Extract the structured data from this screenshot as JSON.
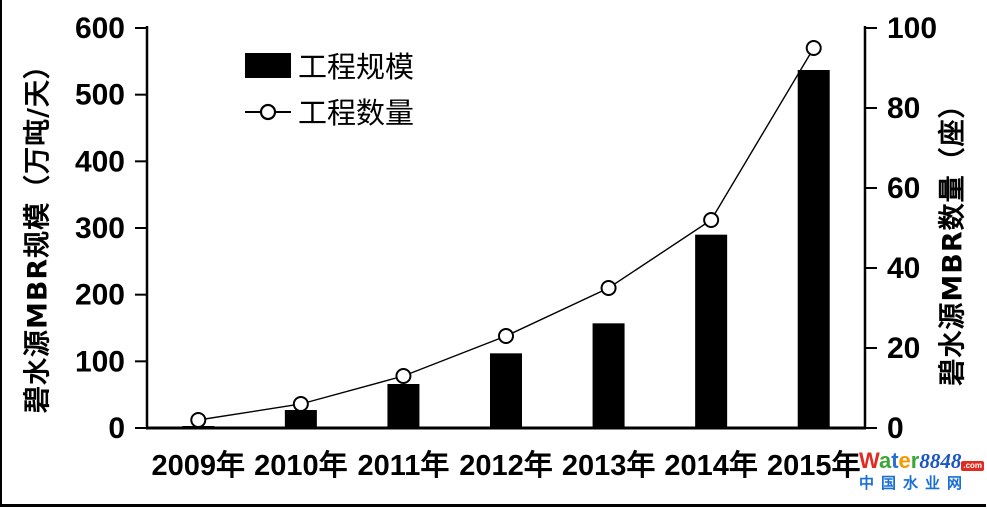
{
  "chart_data": {
    "type": "bar+line combo",
    "categories": [
      "2009年",
      "2010年",
      "2011年",
      "2012年",
      "2013年",
      "2014年",
      "2015年"
    ],
    "series": [
      {
        "name": "工程规模",
        "type": "bar",
        "axis": "left",
        "color": "#000000",
        "values": [
          3,
          27,
          66,
          112,
          157,
          290,
          537
        ]
      },
      {
        "name": "工程数量",
        "type": "line",
        "axis": "right",
        "color": "#000000",
        "marker": "open-circle",
        "marker_fill": "#ffffff",
        "values": [
          2,
          6,
          13,
          23,
          35,
          52,
          95
        ]
      }
    ],
    "left_axis": {
      "label": "碧水源MBR规模（万吨/天）",
      "min": 0,
      "max": 600,
      "step": 100,
      "ticks": [
        0,
        100,
        200,
        300,
        400,
        500,
        600
      ]
    },
    "right_axis": {
      "label": "碧水源MBR数量（座）",
      "min": 0,
      "max": 100,
      "step": 20,
      "ticks": [
        0,
        20,
        40,
        60,
        80,
        100
      ]
    },
    "legend": {
      "position": "inside-top-left",
      "items": [
        "工程规模",
        "工程数量"
      ]
    },
    "grid": false,
    "title": "",
    "axis_color": "#000000",
    "background": "#ffffff"
  },
  "watermark": {
    "brand_letters": [
      {
        "ch": "W",
        "color": "#e02b20"
      },
      {
        "ch": "a",
        "color": "#3da639"
      },
      {
        "ch": "t",
        "color": "#2a6fd6"
      },
      {
        "ch": "e",
        "color": "#f59a00"
      },
      {
        "ch": "r",
        "color": "#3da639"
      }
    ],
    "brand_number": "8848",
    "brand_domain": ".com",
    "line2": "中国水业网"
  }
}
